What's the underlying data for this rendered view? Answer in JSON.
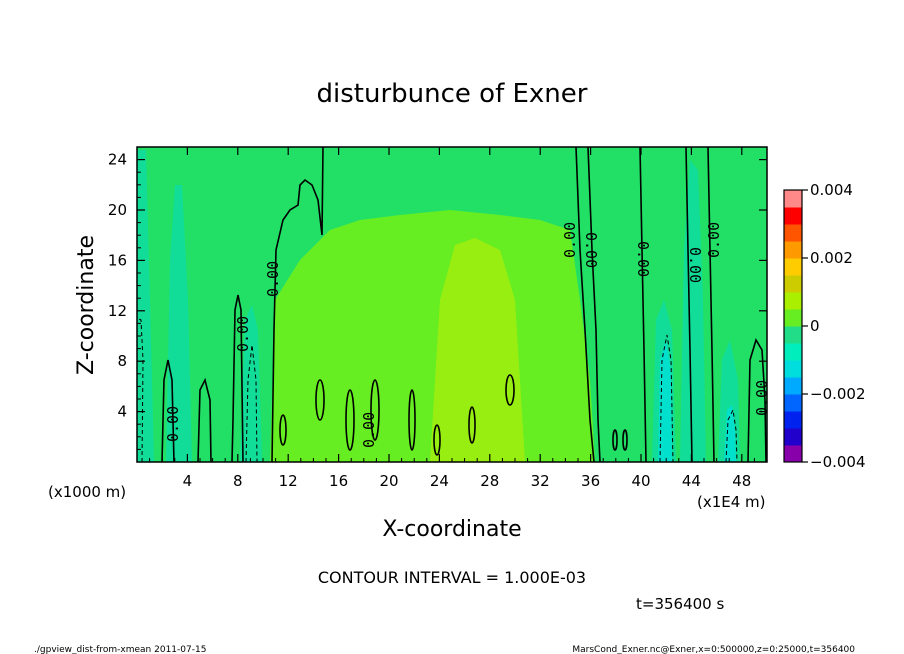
{
  "chart_data": {
    "type": "heatmap",
    "title": "disturbunce of Exner",
    "xlabel": "X-coordinate",
    "ylabel": "Z-coordinate",
    "x_unit_label": "(x1E4 m)",
    "y_unit_label": "(x1000 m)",
    "xlim": [
      0,
      50
    ],
    "ylim": [
      0,
      25
    ],
    "x_ticks": [
      "4",
      "8",
      "12",
      "16",
      "20",
      "24",
      "28",
      "32",
      "36",
      "40",
      "44",
      "48"
    ],
    "x_tick_values": [
      4,
      8,
      12,
      16,
      20,
      24,
      28,
      32,
      36,
      40,
      44,
      48
    ],
    "y_ticks": [
      "4",
      "8",
      "12",
      "16",
      "20",
      "24"
    ],
    "y_tick_values": [
      4,
      8,
      12,
      16,
      20,
      24
    ],
    "colorbar": {
      "min": -0.004,
      "max": 0.004,
      "tick_labels": [
        "0.004",
        "0.002",
        "0",
        "−0.002",
        "−0.004"
      ],
      "tick_values": [
        0.004,
        0.002,
        0,
        -0.002,
        -0.004
      ],
      "colors": [
        "#8800aa",
        "#2200cc",
        "#0022ee",
        "#0066ff",
        "#00aaff",
        "#00dddd",
        "#00eebb",
        "#22dd88",
        "#66ee22",
        "#aaee00",
        "#cccc00",
        "#ffcc00",
        "#ff9900",
        "#ff5500",
        "#ff0000",
        "#ff8888"
      ]
    },
    "contour_labels": [
      "0.00",
      "0.00",
      "0.00",
      "0.00",
      "0.00",
      "0.00",
      "0.00",
      "0.00",
      "0.00",
      "0.00"
    ],
    "contour_interval_text": "CONTOUR INTERVAL = 1.000E-03",
    "time_text": "t=356400 s",
    "footer_left": "./gpview_dist-from-xmean  2011-07-15",
    "footer_right": "MarsCond_Exner.nc@Exner,x=0:500000,z=0:25000,t=356400",
    "fill_colors": {
      "background": "#22e066",
      "positive_weak": "#66ee22",
      "positive_mid": "#99ee11",
      "negative_weak": "#11dd99",
      "negative_mid": "#00e0cc"
    }
  }
}
